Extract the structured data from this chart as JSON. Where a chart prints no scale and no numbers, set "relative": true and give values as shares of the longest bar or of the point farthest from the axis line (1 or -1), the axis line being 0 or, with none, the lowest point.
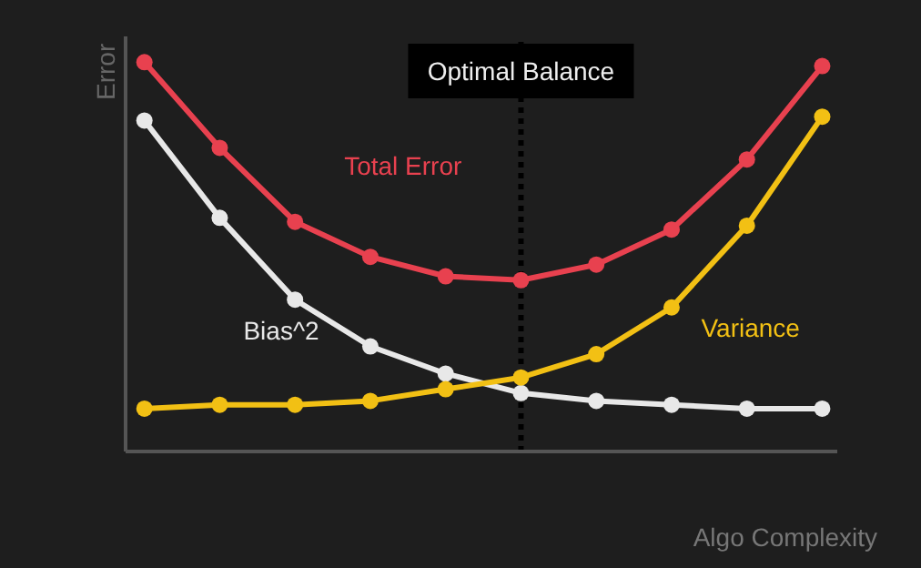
{
  "chart_data": {
    "type": "line",
    "relative": true,
    "xlabel": "Algo Complexity",
    "ylabel": "Error",
    "categories": [
      null,
      null,
      null,
      null,
      null,
      null,
      null,
      null,
      null,
      null
    ],
    "series": [
      {
        "name": "Total Error",
        "color": "#e8414f",
        "values": [
          1,
          0.78,
          0.59,
          0.5,
          0.45,
          0.44,
          0.48,
          0.57,
          0.75,
          0.99
        ]
      },
      {
        "name": "Bias^2",
        "color": "#e8e8e8",
        "values": [
          0.85,
          0.6,
          0.39,
          0.27,
          0.2,
          0.15,
          0.13,
          0.12,
          0.11,
          0.11
        ]
      },
      {
        "name": "Variance",
        "color": "#f2c014",
        "values": [
          0.11,
          0.12,
          0.12,
          0.13,
          0.16,
          0.19,
          0.25,
          0.37,
          0.58,
          0.86
        ]
      }
    ],
    "annotations": [
      "Optimal Balance"
    ],
    "tick_labels": false,
    "grid": false,
    "legend": false,
    "marker": "circle",
    "line_style": "solid"
  }
}
